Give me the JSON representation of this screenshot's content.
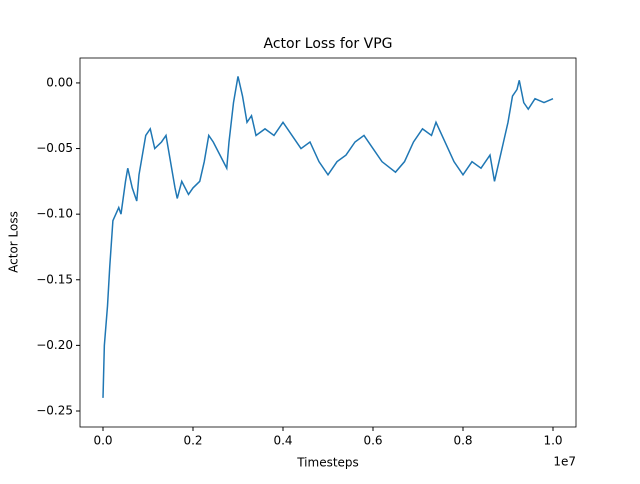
{
  "chart_data": {
    "type": "line",
    "title": "Actor Loss for VPG",
    "x_label": "Timesteps",
    "y_label": "Actor Loss",
    "x_offset_label": "1e7",
    "x": [
      0,
      30000,
      100000,
      150000,
      220000,
      350000,
      400000,
      500000,
      550000,
      650000,
      750000,
      800000,
      950000,
      1050000,
      1150000,
      1300000,
      1400000,
      1500000,
      1600000,
      1650000,
      1750000,
      1900000,
      2000000,
      2150000,
      2250000,
      2350000,
      2450000,
      2600000,
      2750000,
      2800000,
      2900000,
      3000000,
      3100000,
      3200000,
      3300000,
      3400000,
      3600000,
      3800000,
      4000000,
      4200000,
      4400000,
      4600000,
      4800000,
      5000000,
      5200000,
      5400000,
      5600000,
      5800000,
      6000000,
      6200000,
      6500000,
      6700000,
      6900000,
      7100000,
      7300000,
      7400000,
      7600000,
      7800000,
      8000000,
      8200000,
      8400000,
      8600000,
      8700000,
      8800000,
      8900000,
      9000000,
      9100000,
      9200000,
      9250000,
      9350000,
      9450000,
      9600000,
      9800000,
      10000000
    ],
    "series": [
      {
        "name": "Actor Loss",
        "color": "#1f77b4",
        "values": [
          -0.24,
          -0.2,
          -0.17,
          -0.14,
          -0.105,
          -0.095,
          -0.1,
          -0.075,
          -0.065,
          -0.08,
          -0.09,
          -0.07,
          -0.04,
          -0.035,
          -0.05,
          -0.045,
          -0.04,
          -0.06,
          -0.08,
          -0.088,
          -0.075,
          -0.085,
          -0.08,
          -0.075,
          -0.06,
          -0.04,
          -0.045,
          -0.055,
          -0.065,
          -0.045,
          -0.015,
          0.005,
          -0.01,
          -0.03,
          -0.025,
          -0.04,
          -0.035,
          -0.04,
          -0.03,
          -0.04,
          -0.05,
          -0.045,
          -0.06,
          -0.07,
          -0.06,
          -0.055,
          -0.045,
          -0.04,
          -0.05,
          -0.06,
          -0.068,
          -0.06,
          -0.045,
          -0.035,
          -0.04,
          -0.03,
          -0.045,
          -0.06,
          -0.07,
          -0.06,
          -0.065,
          -0.055,
          -0.075,
          -0.06,
          -0.045,
          -0.03,
          -0.01,
          -0.005,
          0.002,
          -0.015,
          -0.02,
          -0.012,
          -0.015,
          -0.012
        ]
      }
    ],
    "xlim": [
      -511111,
      10511111
    ],
    "ylim": [
      -0.2622,
      0.019
    ],
    "xticks": [
      {
        "value": 0,
        "label": "0.0"
      },
      {
        "value": 2000000,
        "label": "0.2"
      },
      {
        "value": 4000000,
        "label": "0.4"
      },
      {
        "value": 6000000,
        "label": "0.6"
      },
      {
        "value": 8000000,
        "label": "0.8"
      },
      {
        "value": 10000000,
        "label": "1.0"
      }
    ],
    "yticks": [
      {
        "value": 0,
        "label": "0.00"
      },
      {
        "value": -0.05,
        "label": "−0.05"
      },
      {
        "value": -0.1,
        "label": "−0.10"
      },
      {
        "value": -0.15,
        "label": "−0.15"
      },
      {
        "value": -0.2,
        "label": "−0.20"
      },
      {
        "value": -0.25,
        "label": "−0.25"
      }
    ]
  }
}
